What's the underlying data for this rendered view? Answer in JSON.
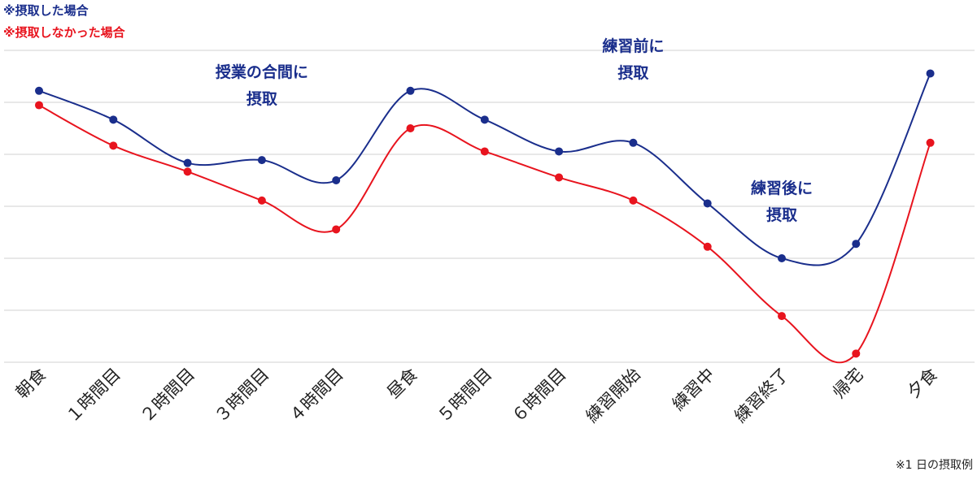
{
  "chart_data": {
    "type": "line",
    "categories": [
      "朝食",
      "１時間目",
      "２時間目",
      "３時間目",
      "４時間目",
      "昼食",
      "５時間目",
      "６時間目",
      "練習開始",
      "練習中",
      "練習終了",
      "帰宅",
      "夕食"
    ],
    "series": [
      {
        "name": "※摂取した場合",
        "color": "#1a2e8c",
        "values": [
          0.94,
          0.84,
          0.69,
          0.7,
          0.63,
          0.94,
          0.84,
          0.73,
          0.76,
          0.55,
          0.36,
          0.41,
          1.0
        ]
      },
      {
        "name": "※摂取しなかった場合",
        "color": "#e8141e",
        "values": [
          0.89,
          0.75,
          0.66,
          0.56,
          0.46,
          0.81,
          0.73,
          0.64,
          0.56,
          0.4,
          0.16,
          0.03,
          0.76
        ]
      }
    ],
    "ylim": [
      0,
      1.08
    ],
    "grid": true,
    "gridlines": 7,
    "legend_position": "top-left",
    "annotations": [
      {
        "lines": [
          "授業の合間に",
          "摂取"
        ],
        "category_index": 3
      },
      {
        "lines": [
          "練習前に",
          "摂取"
        ],
        "category_index": 8
      },
      {
        "lines": [
          "練習後に",
          "摂取"
        ],
        "category_index": 10
      }
    ],
    "footnote": "※1 日の摂取例"
  }
}
